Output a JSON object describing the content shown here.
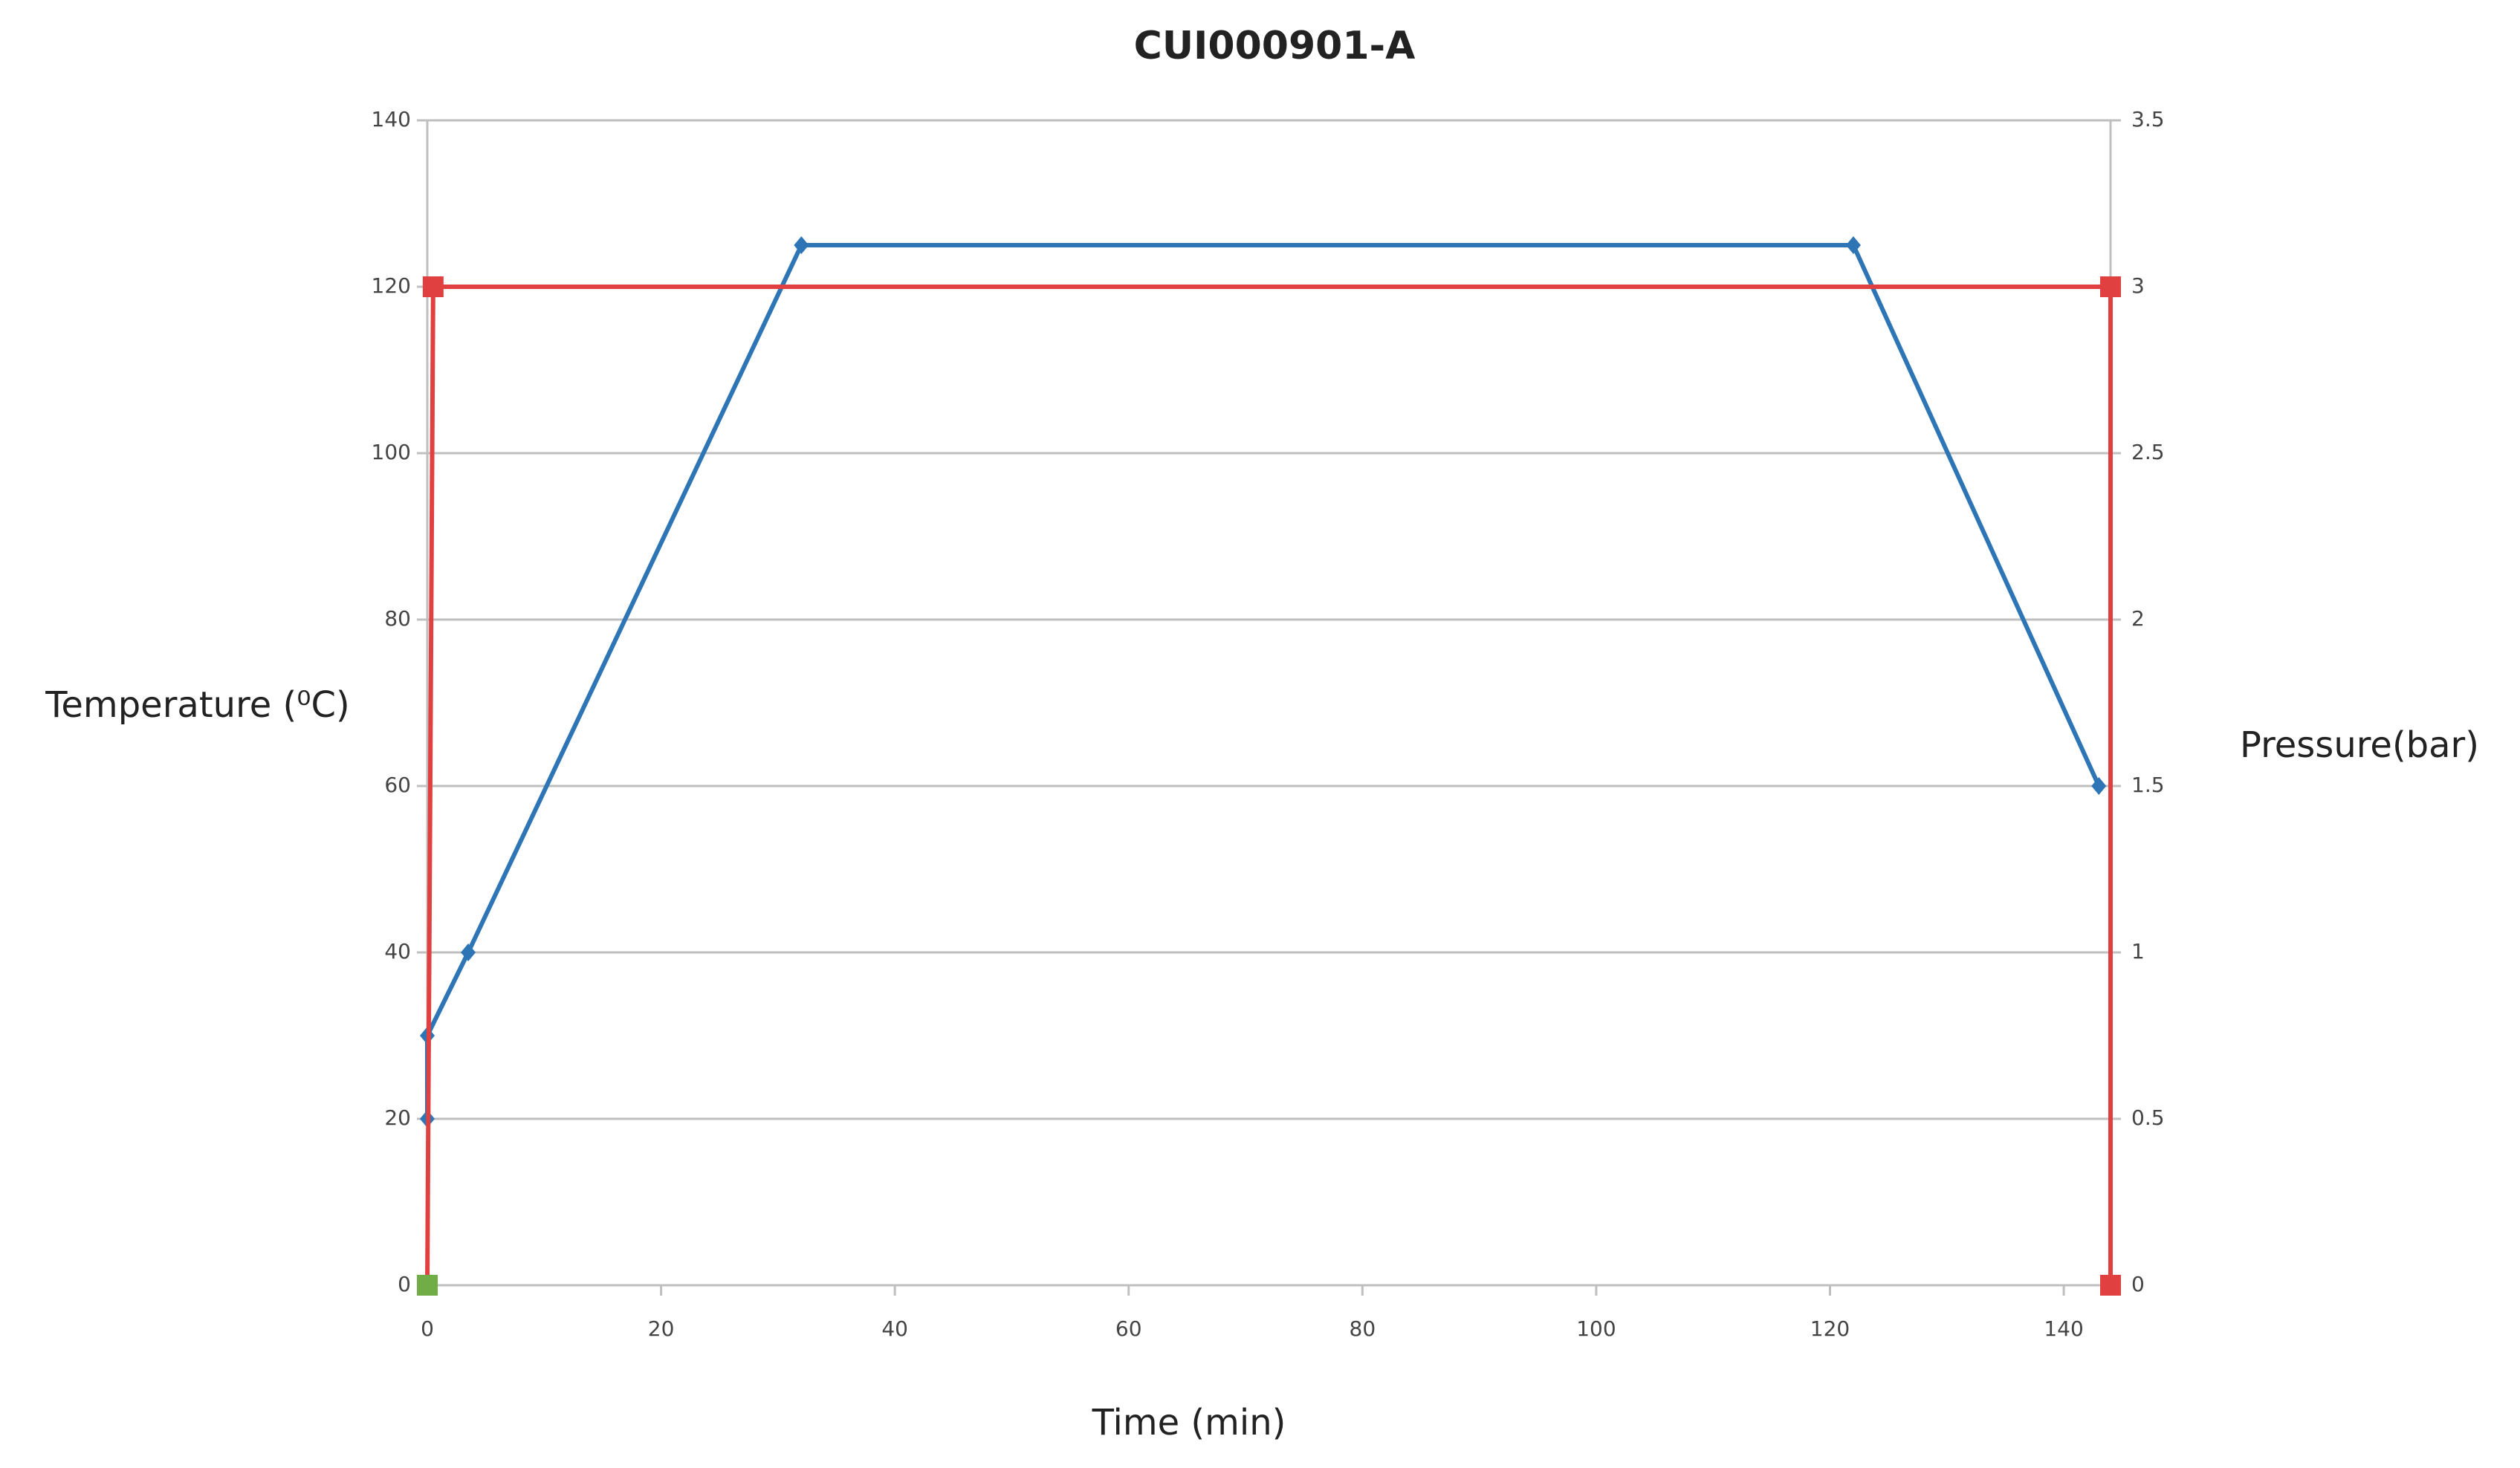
{
  "chart_data": {
    "type": "line",
    "title": "CUI000901-A",
    "x_label": "Time (min)",
    "y_label": "Temperature (⁰C)",
    "y2_label": "Pressure(bar)",
    "xlim": [
      0,
      144
    ],
    "xticks": [
      0,
      20,
      40,
      60,
      80,
      100,
      120,
      140
    ],
    "ylim": [
      0,
      140
    ],
    "yticks": [
      0,
      20,
      40,
      60,
      80,
      100,
      120,
      140
    ],
    "y2lim": [
      0,
      3.5
    ],
    "y2ticks": [
      0,
      0.5,
      1,
      1.5,
      2,
      2.5,
      3,
      3.5
    ],
    "grid": true,
    "series": [
      {
        "color": "#2e75b6",
        "marker": "diamond",
        "x": [
          0,
          0,
          3.5,
          32,
          122,
          143
        ],
        "values": [
          20,
          30,
          40,
          125,
          125,
          60
        ]
      },
      {
        "color": "#e04040",
        "marker": "square",
        "axis": "y2",
        "x": [
          0,
          0.5,
          144,
          144
        ],
        "values": [
          0,
          3,
          3,
          0
        ]
      },
      {
        "color": "#70ad47",
        "marker": "square",
        "x": [
          0
        ],
        "values": [
          0
        ]
      }
    ]
  }
}
